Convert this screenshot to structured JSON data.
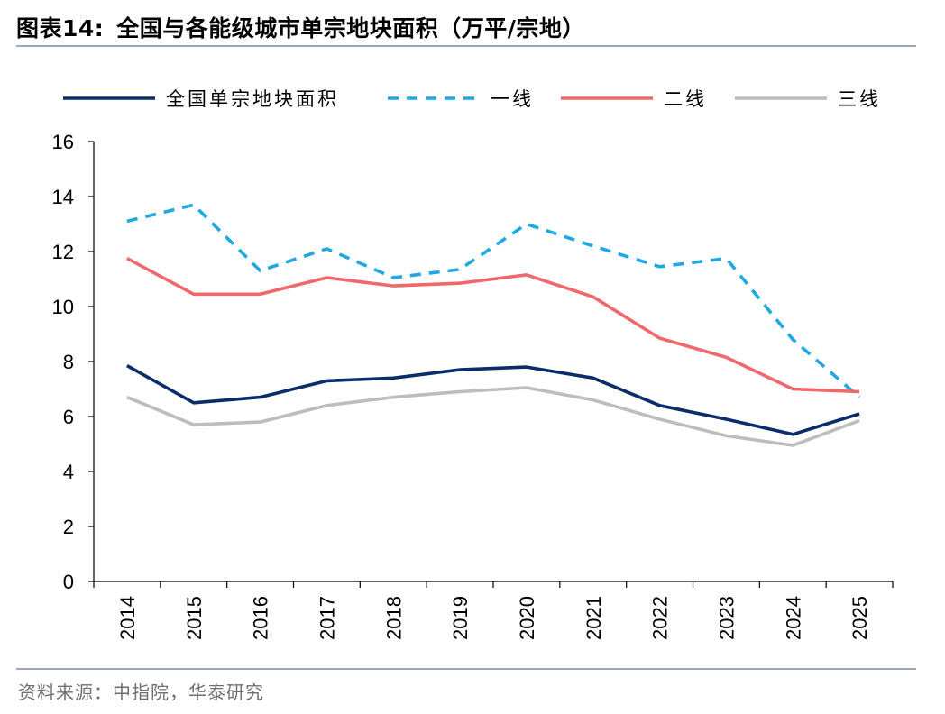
{
  "header": {
    "figure_label": "图表14:",
    "title_text": "全国与各能级城市单宗地块面积（万平/宗地）"
  },
  "footer": {
    "source_text": "资料来源：中指院，华泰研究"
  },
  "chart_data": {
    "type": "line",
    "title": "全国与各能级城市单宗地块面积（万平/宗地）",
    "xlabel": "",
    "ylabel": "",
    "categories": [
      "2014",
      "2015",
      "2016",
      "2017",
      "2018",
      "2019",
      "2020",
      "2021",
      "2022",
      "2023",
      "2024",
      "2025"
    ],
    "ylim": [
      0,
      16
    ],
    "yticks": [
      0,
      2,
      4,
      6,
      8,
      10,
      12,
      14,
      16
    ],
    "legend_position": "top",
    "grid": false,
    "series": [
      {
        "name": "全国单宗地块面积",
        "color": "#0b2d6b",
        "dash": "solid",
        "values": [
          7.85,
          6.5,
          6.7,
          7.3,
          7.4,
          7.7,
          7.8,
          7.4,
          6.4,
          5.9,
          5.35,
          6.1
        ]
      },
      {
        "name": "一线",
        "color": "#1fa8e3",
        "dash": "dashed",
        "values": [
          13.1,
          13.7,
          11.3,
          12.1,
          11.05,
          11.35,
          13.0,
          12.2,
          11.45,
          11.75,
          8.8,
          6.7
        ]
      },
      {
        "name": "二线",
        "color": "#f0686b",
        "dash": "solid",
        "values": [
          11.75,
          10.45,
          10.45,
          11.05,
          10.75,
          10.85,
          11.15,
          10.35,
          8.85,
          8.15,
          7.0,
          6.9
        ]
      },
      {
        "name": "三线",
        "color": "#bdbdbd",
        "dash": "solid",
        "values": [
          6.7,
          5.7,
          5.8,
          6.4,
          6.7,
          6.9,
          7.05,
          6.6,
          5.9,
          5.3,
          4.95,
          5.85
        ]
      }
    ]
  }
}
